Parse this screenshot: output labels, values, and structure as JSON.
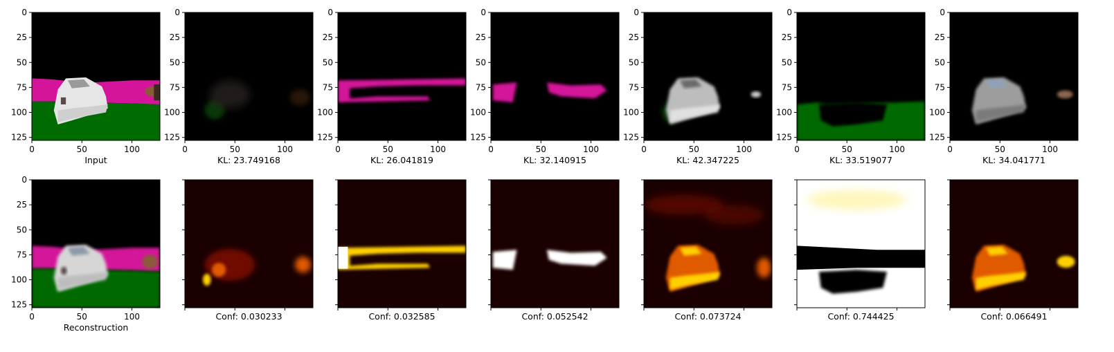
{
  "chart_data": {
    "type": "image-grid",
    "image_width": 128,
    "image_height": 128,
    "x_ticks": [
      0,
      50,
      100
    ],
    "y_ticks": [
      0,
      25,
      50,
      75,
      100,
      125
    ],
    "colors": {
      "background": "#000000",
      "magenta": "#d4149a",
      "grass": "#006b00",
      "car_white": "#e6e6e6",
      "car_gray": "#9a9a9a",
      "car_dark": "#5a4a4a",
      "hand_brown": "#8a5a3a",
      "heat_dark": "#1a0000",
      "heat_low": "#7a1000",
      "heat_mid": "#e05a00",
      "heat_high": "#ffd000",
      "heat_max": "#ffffff"
    },
    "top_row": [
      {
        "caption": "Input",
        "kind": "input"
      },
      {
        "caption": "KL: 23.749168",
        "kind": "dim-scene"
      },
      {
        "caption": "KL: 26.041819",
        "kind": "magenta-band"
      },
      {
        "caption": "KL: 32.140915",
        "kind": "magenta-blobs"
      },
      {
        "caption": "KL: 42.347225",
        "kind": "car-gray"
      },
      {
        "caption": "KL: 33.519077",
        "kind": "grass-only"
      },
      {
        "caption": "KL: 34.041771",
        "kind": "car-gray-right"
      }
    ],
    "bottom_row": [
      {
        "caption": "Reconstruction",
        "kind": "reconstruction"
      },
      {
        "caption": "Conf: 0.030233",
        "kind": "heat-dim"
      },
      {
        "caption": "Conf: 0.032585",
        "kind": "heat-band"
      },
      {
        "caption": "Conf: 0.052542",
        "kind": "heat-blobs"
      },
      {
        "caption": "Conf: 0.073724",
        "kind": "heat-car"
      },
      {
        "caption": "Conf: 0.744425",
        "kind": "heat-sky-grass"
      },
      {
        "caption": "Conf: 0.066491",
        "kind": "heat-car-right"
      }
    ]
  }
}
